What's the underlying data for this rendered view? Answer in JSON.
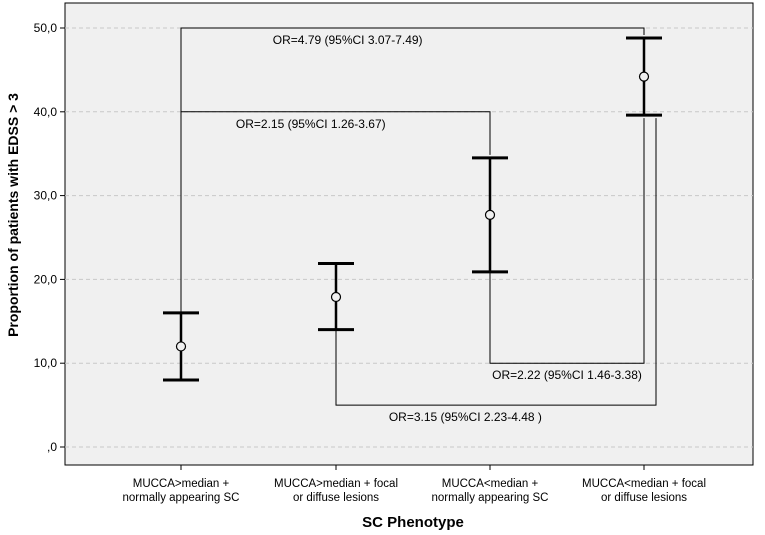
{
  "chart_data": {
    "type": "errorbar",
    "xlabel": "SC Phenotype",
    "ylabel": "Proportion of patients with EDSS > 3",
    "ylim": [
      0,
      50
    ],
    "yticks": [
      {
        "value": 0,
        "label": ",0"
      },
      {
        "value": 10,
        "label": "10,0"
      },
      {
        "value": 20,
        "label": "20,0"
      },
      {
        "value": 30,
        "label": "30,0"
      },
      {
        "value": 40,
        "label": "40,0"
      },
      {
        "value": 50,
        "label": "50,0"
      }
    ],
    "grid": true,
    "categories": [
      {
        "line1": "MUCCA>median +",
        "line2": "normally appearing SC",
        "mean": 12.0,
        "lower": 8.0,
        "upper": 16.0
      },
      {
        "line1": "MUCCA>median + focal",
        "line2": "or diffuse lesions",
        "mean": 17.9,
        "lower": 14.0,
        "upper": 21.9
      },
      {
        "line1": "MUCCA<median +",
        "line2": "normally appearing SC",
        "mean": 27.7,
        "lower": 20.9,
        "upper": 34.5
      },
      {
        "line1": "MUCCA<median + focal",
        "line2": "or diffuse lesions",
        "mean": 44.2,
        "lower": 39.6,
        "upper": 48.8
      }
    ],
    "annotations": [
      {
        "label": "OR=4.79 (95%CI 3.07-7.49)",
        "from": 0,
        "to": 3,
        "y": 50.0,
        "direction": "up"
      },
      {
        "label": "OR=2.15 (95%CI 1.26-3.67)",
        "from": 0,
        "to": 2,
        "y": 40.0,
        "direction": "up"
      },
      {
        "label": "OR=2.22 (95%CI 1.46-3.38)",
        "from": 2,
        "to": 3,
        "y": 10.0,
        "direction": "down"
      },
      {
        "label": "OR=3.15 (95%CI 2.23-4.48 )",
        "from": 1,
        "to": 3,
        "y": 5.0,
        "direction": "down"
      }
    ]
  }
}
